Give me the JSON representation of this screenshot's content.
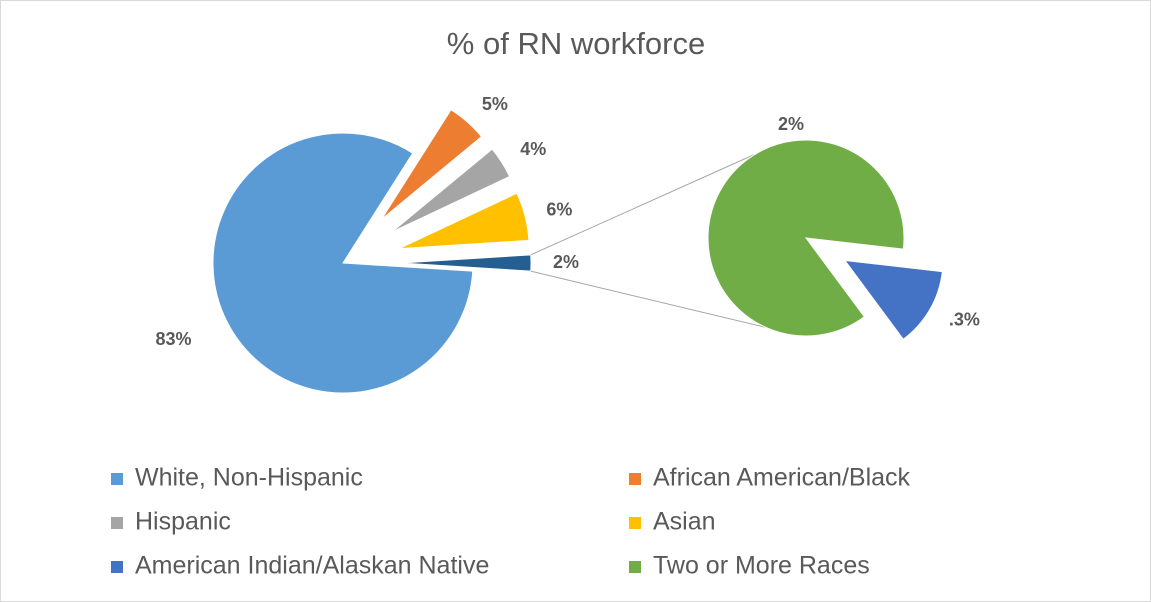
{
  "chart_data": {
    "type": "pie_of_pie",
    "title": "% of RN workforce",
    "categories": [
      "White, Non-Hispanic",
      "African American/Black",
      "Hispanic",
      "Asian",
      "American Indian/Alaskan Native",
      "Two or More Races"
    ],
    "colors": [
      "#5b9bd5",
      "#ed7d31",
      "#a5a5a5",
      "#ffc000",
      "#4472c4",
      "#70ad47"
    ],
    "values": [
      83,
      5,
      4,
      6,
      0.3,
      2
    ],
    "value_labels": [
      "83%",
      "5%",
      "4%",
      "6%",
      ".3%",
      "2%"
    ],
    "other_value": 2,
    "other_label": "2%",
    "other_color": "#255e91",
    "second_plot_size": 2
  }
}
